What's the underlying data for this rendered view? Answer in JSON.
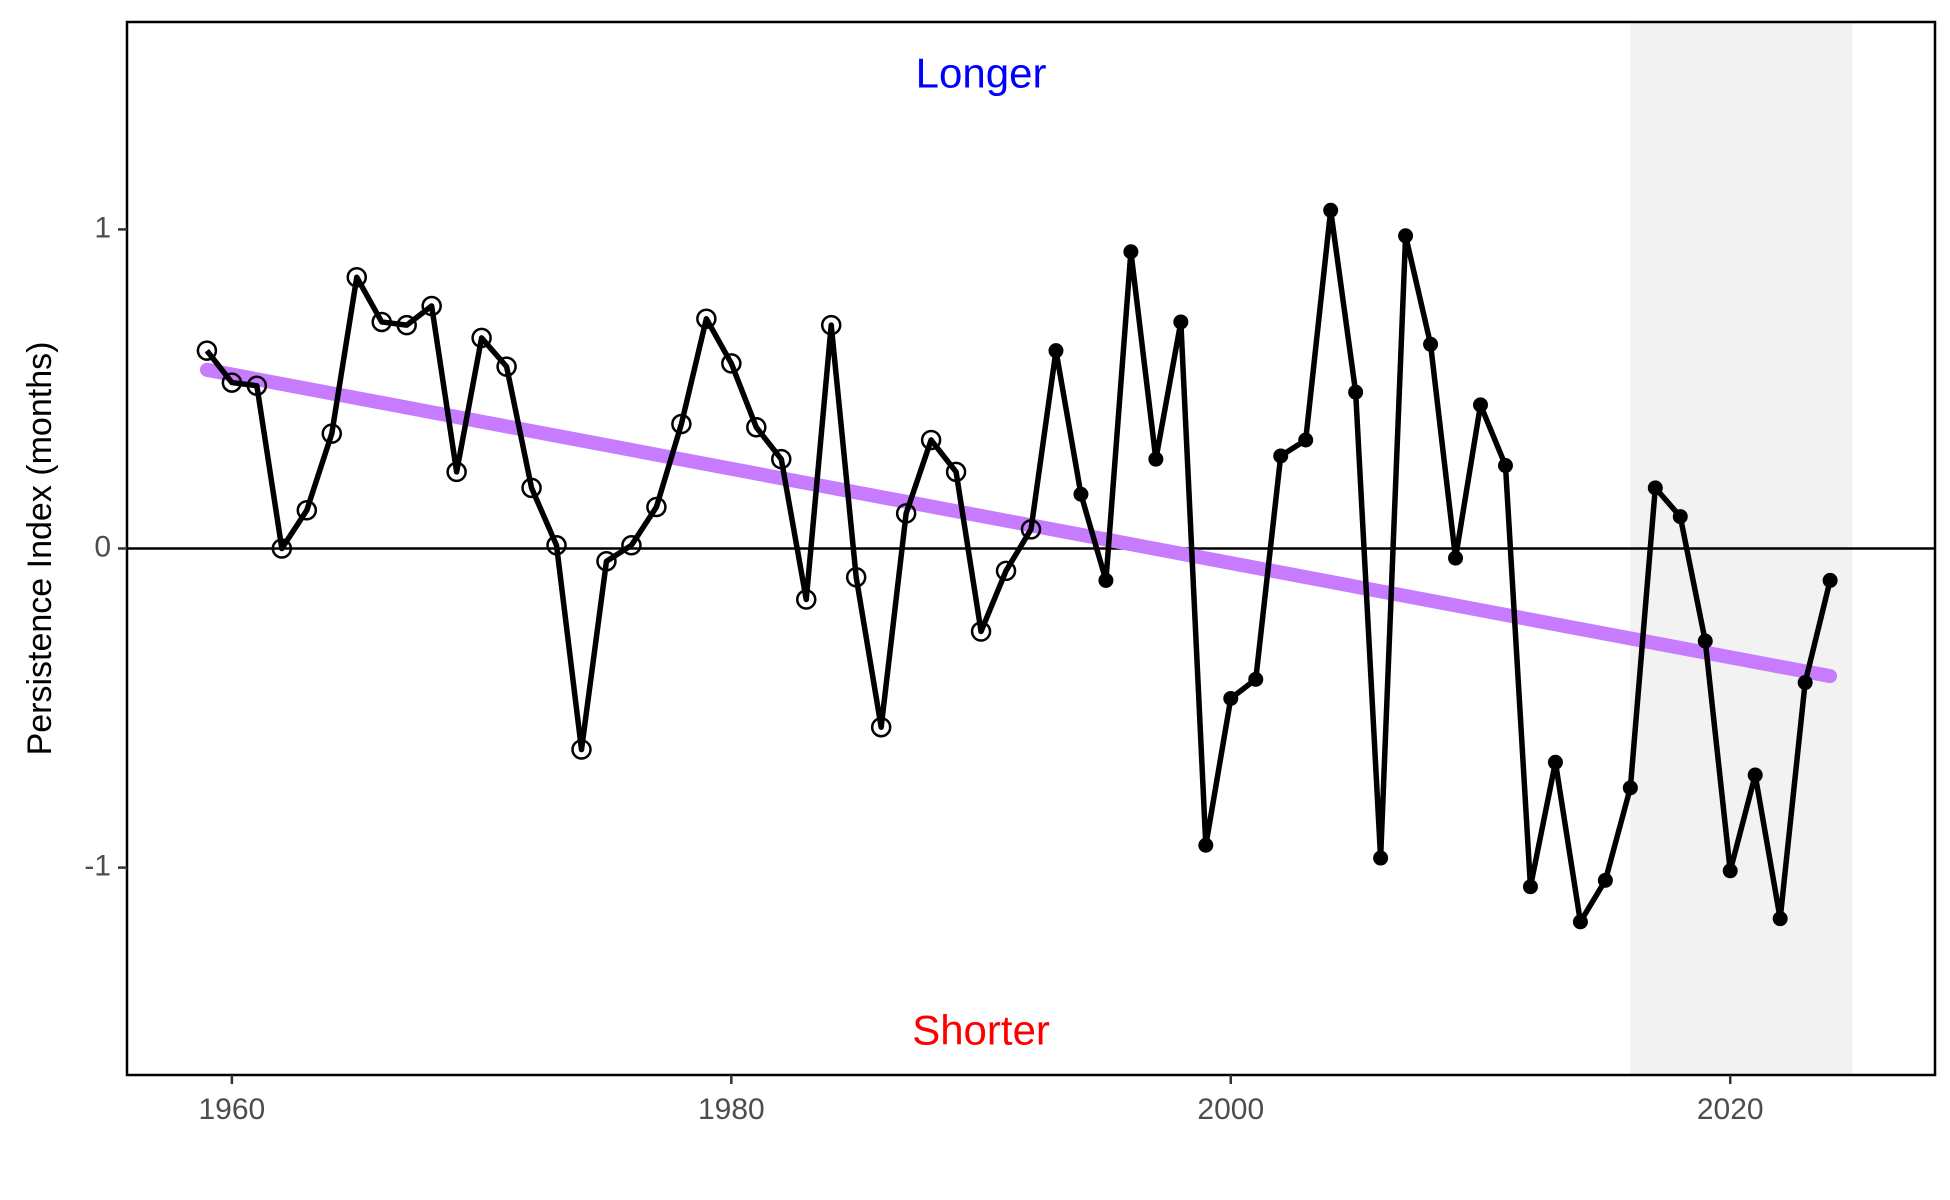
{
  "chart_data": {
    "type": "line",
    "xlabel": "",
    "ylabel": "Persistence Index (months)",
    "xlim": [
      1955.8,
      2028.2
    ],
    "ylim": [
      -1.65,
      1.65
    ],
    "xticks": [
      1960,
      1980,
      2000,
      2020
    ],
    "yticks": [
      -1,
      0,
      1
    ],
    "grid": false,
    "shaded_region": {
      "x": [
        2016.0,
        2024.9
      ],
      "color": "#f2f2f2"
    },
    "reference_line": {
      "y": 0,
      "color": "#000000"
    },
    "annotations": [
      {
        "text": "Longer",
        "x": 1990,
        "y": 1.48,
        "color": "#0000ff"
      },
      {
        "text": "Shorter",
        "x": 1990,
        "y": -1.52,
        "color": "#ff0000"
      }
    ],
    "trend": {
      "x": [
        1959,
        2024
      ],
      "y": [
        0.56,
        -0.4
      ],
      "color": "#c77cff"
    },
    "series": [
      {
        "x": [
          1959,
          1960,
          1961,
          1962,
          1963,
          1964,
          1965,
          1966,
          1967,
          1968,
          1969,
          1970,
          1971,
          1972,
          1973,
          1974,
          1975,
          1976,
          1977,
          1978,
          1979,
          1980,
          1981,
          1982,
          1983,
          1984,
          1985,
          1986,
          1987,
          1988,
          1989,
          1990,
          1991,
          1992,
          1993,
          1994,
          1995,
          1996,
          1997,
          1998,
          1999,
          2000,
          2001,
          2002,
          2003,
          2004,
          2005,
          2006,
          2007,
          2008,
          2009,
          2010,
          2011,
          2012,
          2013,
          2014,
          2015,
          2016,
          2017,
          2018,
          2019,
          2020,
          2021,
          2022,
          2023,
          2024
        ],
        "values": [
          0.62,
          0.52,
          0.51,
          0.0,
          0.12,
          0.36,
          0.85,
          0.71,
          0.7,
          0.76,
          0.24,
          0.66,
          0.57,
          0.19,
          0.01,
          -0.63,
          -0.04,
          0.01,
          0.13,
          0.39,
          0.72,
          0.58,
          0.38,
          0.28,
          -0.16,
          0.7,
          -0.09,
          -0.56,
          0.11,
          0.34,
          0.24,
          -0.26,
          -0.07,
          0.06,
          0.62,
          0.17,
          -0.1,
          0.93,
          0.28,
          0.71,
          -0.93,
          -0.47,
          -0.41,
          0.29,
          0.34,
          1.06,
          0.49,
          -0.97,
          0.98,
          0.64,
          -0.03,
          0.45,
          0.26,
          -1.06,
          -0.67,
          -1.17,
          -1.04,
          -0.75,
          0.19,
          0.1,
          -0.29,
          -1.01,
          -0.71,
          -1.16,
          -0.42,
          -0.1
        ],
        "open_marker_until": 1992,
        "color": "#000000"
      }
    ]
  }
}
